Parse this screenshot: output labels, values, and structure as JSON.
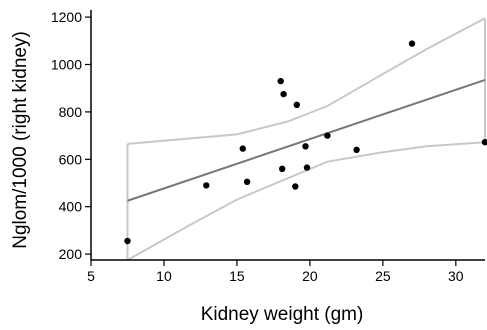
{
  "chart_data": {
    "type": "scatter",
    "title": "",
    "xlabel": "Kidney weight (gm)",
    "ylabel": "Nglom/1000 (right kidney)",
    "xlim": [
      5,
      32
    ],
    "ylim": [
      175,
      1230
    ],
    "x_ticks": [
      "5",
      "10",
      "15",
      "20",
      "25",
      "30"
    ],
    "y_ticks": [
      "200",
      "400",
      "600",
      "800",
      "1000",
      "1200"
    ],
    "grid": false,
    "legend": "none",
    "colors": {
      "points": "#000000",
      "fit_line": "#777777",
      "confidence_band": "#c8c8c8",
      "axis": "#000000"
    },
    "points": [
      {
        "x": 7.5,
        "y": 255
      },
      {
        "x": 12.9,
        "y": 490
      },
      {
        "x": 15.4,
        "y": 645
      },
      {
        "x": 15.7,
        "y": 505
      },
      {
        "x": 18.0,
        "y": 930
      },
      {
        "x": 18.1,
        "y": 560
      },
      {
        "x": 18.2,
        "y": 875
      },
      {
        "x": 19.0,
        "y": 485
      },
      {
        "x": 19.1,
        "y": 830
      },
      {
        "x": 19.7,
        "y": 655
      },
      {
        "x": 19.8,
        "y": 565
      },
      {
        "x": 21.2,
        "y": 700
      },
      {
        "x": 23.2,
        "y": 640
      },
      {
        "x": 27.0,
        "y": 1088
      },
      {
        "x": 32.0,
        "y": 672
      }
    ],
    "fit_line": [
      {
        "x": 7.5,
        "y": 425
      },
      {
        "x": 32.0,
        "y": 935
      }
    ],
    "confidence_upper": [
      {
        "x": 7.5,
        "y": 665
      },
      {
        "x": 15.0,
        "y": 705
      },
      {
        "x": 18.5,
        "y": 760
      },
      {
        "x": 21.2,
        "y": 825
      },
      {
        "x": 25.0,
        "y": 960
      },
      {
        "x": 28.0,
        "y": 1065
      },
      {
        "x": 32.0,
        "y": 1195
      }
    ],
    "confidence_lower": [
      {
        "x": 7.5,
        "y": 175
      },
      {
        "x": 12.0,
        "y": 330
      },
      {
        "x": 15.0,
        "y": 430
      },
      {
        "x": 18.5,
        "y": 520
      },
      {
        "x": 21.2,
        "y": 590
      },
      {
        "x": 25.0,
        "y": 630
      },
      {
        "x": 28.0,
        "y": 655
      },
      {
        "x": 32.0,
        "y": 672
      }
    ]
  }
}
